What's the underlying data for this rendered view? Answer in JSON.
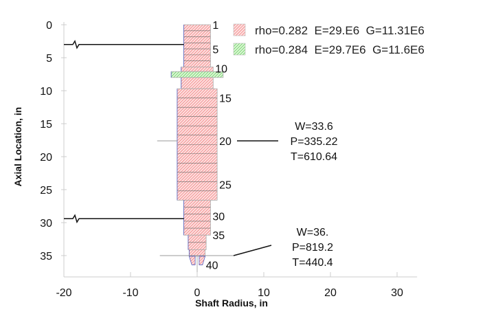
{
  "chart_data": {
    "type": "diagram",
    "xlabel": "Shaft Radius, in",
    "ylabel": "Axial Location, in",
    "xlim": [
      -20,
      33
    ],
    "ylim": [
      38,
      0
    ],
    "x_ticks": [
      -20,
      -10,
      0,
      10,
      20,
      30
    ],
    "y_ticks": [
      0,
      5,
      10,
      15,
      20,
      25,
      30,
      35
    ],
    "legend": {
      "placement": "top-right",
      "entries": [
        {
          "label": "rho=0.282  E=29.E6  G=11.31E6",
          "color": "#f08080",
          "fill": "#fde0e0"
        },
        {
          "label": "rho=0.284  E=29.7E6  G=11.6E6",
          "color": "#40c040",
          "fill": "#d8f5d0"
        }
      ]
    },
    "sections": [
      {
        "z0": 0,
        "z1": 6.4,
        "r": 2.0,
        "material": 0,
        "divisions": 7
      },
      {
        "z0": 6.4,
        "z1": 7.1,
        "r": 2.4,
        "material": 0,
        "divisions": 1
      },
      {
        "z0": 7.1,
        "z1": 8.0,
        "r": 3.9,
        "material": 1,
        "divisions": 1
      },
      {
        "z0": 8.0,
        "z1": 9.7,
        "r": 2.4,
        "material": 0,
        "divisions": 1
      },
      {
        "z0": 9.7,
        "z1": 26.6,
        "r": 3.0,
        "material": 0,
        "divisions": 12
      },
      {
        "z0": 26.6,
        "z1": 31.9,
        "r": 2.0,
        "material": 0,
        "divisions": 5
      },
      {
        "z0": 31.9,
        "z1": 34.1,
        "r": 1.35,
        "material": 0,
        "divisions": 2
      },
      {
        "z0": 34.1,
        "z1": 35.1,
        "r": 1.2,
        "material": 0,
        "divisions": 1
      }
    ],
    "tapered_end": {
      "z0": 35.1,
      "z1": 36.4,
      "r_outer0": 1.2,
      "r_outer1": 0.8,
      "r_inner": 0.3
    },
    "stations": [
      {
        "label": "1",
        "z": 0
      },
      {
        "label": "5",
        "z": 3.7
      },
      {
        "label": "10",
        "z": 6.6
      },
      {
        "label": "15",
        "z": 11.1
      },
      {
        "label": "20",
        "z": 17.6
      },
      {
        "label": "25",
        "z": 24.2
      },
      {
        "label": "30",
        "z": 29.0
      },
      {
        "label": "35",
        "z": 31.9
      },
      {
        "label": "40",
        "z": 36.4
      }
    ],
    "bearings": [
      {
        "z": 3.0
      },
      {
        "z": 29.4
      }
    ],
    "disks": [
      {
        "z": 17.6,
        "lines": [
          "W=33.6",
          "P=335.22",
          "T=610.64"
        ]
      },
      {
        "z": 35.0,
        "lines": [
          "W=36.",
          "P=819.2",
          "T=440.4"
        ]
      }
    ]
  }
}
